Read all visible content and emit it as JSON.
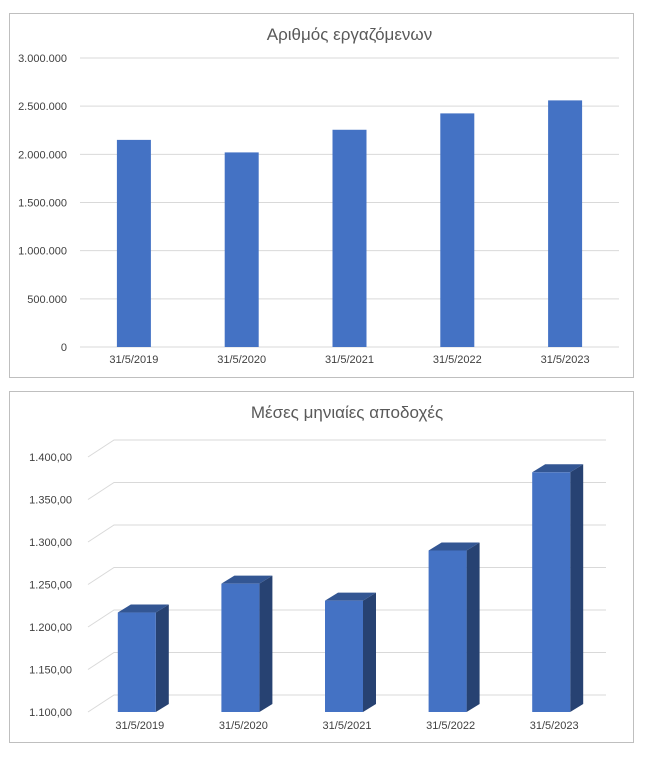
{
  "chart_data": [
    {
      "type": "bar",
      "title": "Αριθμός εργαζόμενων",
      "categories": [
        "31/5/2019",
        "31/5/2020",
        "31/5/2021",
        "31/5/2022",
        "31/5/2023"
      ],
      "values": [
        2150000,
        2020000,
        2255000,
        2425000,
        2560000
      ],
      "ylim": [
        0,
        3000000
      ],
      "yticks": [
        "0",
        "500.000",
        "1.000.000",
        "1.500.000",
        "2.000.000",
        "2.500.000",
        "3.000.000"
      ],
      "grid": true,
      "color": "#4472c4"
    },
    {
      "type": "bar",
      "style": "3d",
      "title": "Μέσες μηνιαίες αποδοχές",
      "categories": [
        "31/5/2019",
        "31/5/2020",
        "31/5/2021",
        "31/5/2022",
        "31/5/2023"
      ],
      "values": [
        1217,
        1251,
        1231,
        1290,
        1382
      ],
      "ylim": [
        1100,
        1400
      ],
      "yticks": [
        "1.100,00",
        "1.150,00",
        "1.200,00",
        "1.250,00",
        "1.300,00",
        "1.350,00",
        "1.400,00"
      ],
      "grid": true,
      "color": "#4472c4"
    }
  ]
}
